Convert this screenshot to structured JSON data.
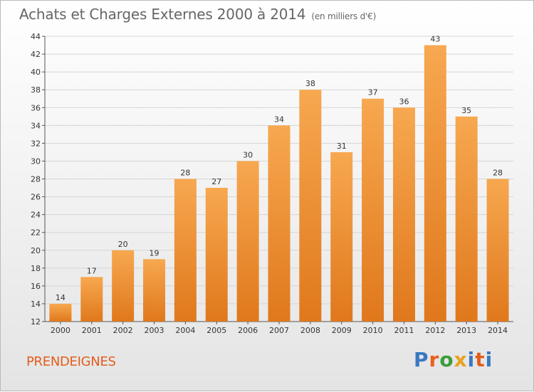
{
  "header": {
    "title": "Achats et Charges Externes 2000 à 2014",
    "subtitle": "(en milliers d'€)"
  },
  "footer": {
    "commune": "PRENDEIGNES",
    "logo_text": "Proxiti"
  },
  "colors": {
    "bar_top": "#f7a850",
    "bar_bottom": "#e0781c",
    "grid": "#d5d5d5",
    "text": "#333333"
  },
  "chart_data": {
    "type": "bar",
    "categories": [
      "2000",
      "2001",
      "2002",
      "2003",
      "2004",
      "2005",
      "2006",
      "2007",
      "2008",
      "2009",
      "2010",
      "2011",
      "2012",
      "2013",
      "2014"
    ],
    "values": [
      14,
      17,
      20,
      19,
      28,
      27,
      30,
      34,
      38,
      31,
      37,
      36,
      43,
      35,
      28
    ],
    "title": "Achats et Charges Externes 2000 à 2014",
    "ylim": [
      12,
      44
    ],
    "yticks": [
      12,
      14,
      16,
      18,
      20,
      22,
      24,
      26,
      28,
      30,
      32,
      34,
      36,
      38,
      40,
      42,
      44
    ],
    "grid": true
  }
}
